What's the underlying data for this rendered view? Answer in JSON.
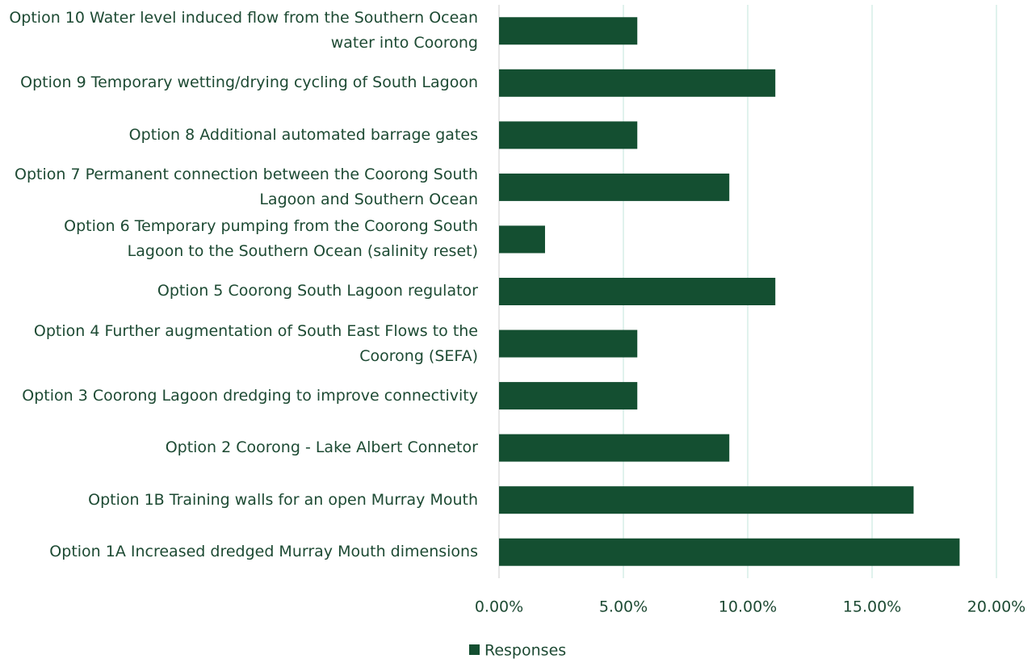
{
  "chart_data": {
    "type": "barh",
    "categories": [
      "Option 10 Water level induced flow from the Southern Ocean water into Coorong",
      "Option 9 Temporary wetting/drying cycling of South Lagoon",
      "Option 8 Additional automated barrage gates",
      "Option 7 Permanent connection between the Coorong South Lagoon and Southern Ocean",
      "Option 6 Temporary pumping from the Coorong South Lagoon to the Southern Ocean (salinity reset)",
      "Option 5 Coorong South Lagoon regulator",
      "Option 4 Further augmentation of South East Flows to the Coorong (SEFA)",
      "Option 3 Coorong Lagoon dredging to improve connectivity",
      "Option 2 Coorong - Lake Albert Connetor",
      "Option 1B Training walls for an open Murray Mouth",
      "Option 1A Increased dredged Murray Mouth dimensions"
    ],
    "series": [
      {
        "name": "Responses",
        "color": "#144f31",
        "values": [
          5.56,
          11.11,
          5.56,
          9.26,
          1.85,
          11.11,
          5.56,
          5.56,
          9.26,
          16.67,
          18.52
        ]
      }
    ],
    "xlim": [
      0,
      20
    ],
    "xticks": [
      {
        "value": 0,
        "label": "0.00%"
      },
      {
        "value": 5,
        "label": "5.00%"
      },
      {
        "value": 10,
        "label": "10.00%"
      },
      {
        "value": 15,
        "label": "15.00%"
      },
      {
        "value": 20,
        "label": "20.00%"
      }
    ],
    "grid": true,
    "legend": "bottom"
  }
}
